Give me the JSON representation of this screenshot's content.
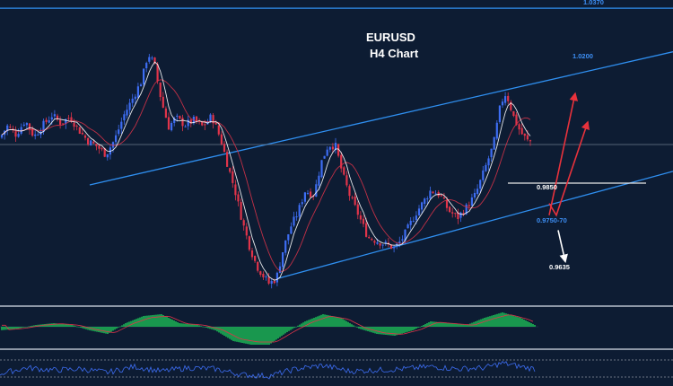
{
  "chart_data": {
    "type": "candlestick",
    "title": "EURUSD",
    "subtitle": "H4 Chart",
    "colors": {
      "background": "#0d1c33",
      "bull": "#3d6df2",
      "bear": "#e0344a",
      "trendline": "#2f8ff0",
      "support_line": "#e8e8e8",
      "arrow_up": "#e8323c",
      "arrow_down": "#ffffff",
      "macd_pos": "#1fcc5a",
      "ma_fast": "#ffffff",
      "ma_slow": "#e0344a",
      "rsi": "#3d6df2"
    },
    "price_range": [
      0.9565,
      1.0395
    ],
    "close_path": [
      [
        0,
        1.0009
      ],
      [
        8,
        1.0042
      ],
      [
        18,
        1.0018
      ],
      [
        28,
        1.0058
      ],
      [
        38,
        1.0012
      ],
      [
        48,
        1.0045
      ],
      [
        58,
        1.0072
      ],
      [
        68,
        1.005
      ],
      [
        78,
        1.0068
      ],
      [
        88,
        1.003
      ],
      [
        98,
        1.0
      ],
      [
        108,
        0.9985
      ],
      [
        118,
        0.9962
      ],
      [
        128,
        1.0005
      ],
      [
        138,
        1.0072
      ],
      [
        148,
        1.012
      ],
      [
        158,
        1.017
      ],
      [
        165,
        1.0245
      ],
      [
        172,
        1.0215
      ],
      [
        180,
        1.011
      ],
      [
        188,
        1.004
      ],
      [
        196,
        1.0065
      ],
      [
        206,
        1.0045
      ],
      [
        216,
        1.0058
      ],
      [
        226,
        1.004
      ],
      [
        236,
        1.007
      ],
      [
        246,
        1.0005
      ],
      [
        254,
        0.993
      ],
      [
        262,
        0.986
      ],
      [
        270,
        0.9775
      ],
      [
        278,
        0.9705
      ],
      [
        286,
        0.965
      ],
      [
        294,
        0.962
      ],
      [
        300,
        0.96
      ],
      [
        308,
        0.9615
      ],
      [
        316,
        0.97
      ],
      [
        324,
        0.976
      ],
      [
        332,
        0.98
      ],
      [
        340,
        0.986
      ],
      [
        350,
        0.985
      ],
      [
        358,
        0.994
      ],
      [
        366,
        0.999
      ],
      [
        374,
        0.9985
      ],
      [
        382,
        0.9905
      ],
      [
        390,
        0.9845
      ],
      [
        400,
        0.979
      ],
      [
        410,
        0.973
      ],
      [
        420,
        0.972
      ],
      [
        430,
        0.971
      ],
      [
        440,
        0.97
      ],
      [
        448,
        0.9725
      ],
      [
        456,
        0.9762
      ],
      [
        464,
        0.98
      ],
      [
        472,
        0.983
      ],
      [
        480,
        0.9862
      ],
      [
        490,
        0.985
      ],
      [
        500,
        0.9805
      ],
      [
        510,
        0.9785
      ],
      [
        520,
        0.9815
      ],
      [
        530,
        0.985
      ],
      [
        540,
        0.992
      ],
      [
        550,
        0.999
      ],
      [
        558,
        1.0105
      ],
      [
        564,
        1.0135
      ],
      [
        572,
        1.007
      ],
      [
        580,
        1.0025
      ],
      [
        588,
        1.0
      ],
      [
        594,
        0.9998
      ]
    ],
    "trendlines": [
      {
        "name": "upper_channel",
        "from": [
          100,
          0.9877
        ],
        "to": [
          750,
          1.025
        ],
        "color": "#2f8ff0"
      },
      {
        "name": "lower_channel",
        "from": [
          310,
          0.9615
        ],
        "to": [
          750,
          0.9915
        ],
        "color": "#2f8ff0"
      },
      {
        "name": "upper_band",
        "from": [
          0,
          1.0372
        ],
        "to": [
          750,
          1.0372
        ],
        "color": "#2f8ff0"
      },
      {
        "name": "pivot",
        "from": [
          0,
          0.999
        ],
        "to": [
          750,
          0.999
        ],
        "color": "#6a7a8c"
      },
      {
        "name": "support",
        "from": [
          566,
          0.9882
        ],
        "to": [
          720,
          0.9882
        ],
        "color": "#e8e8e8"
      }
    ],
    "levels": [
      {
        "label": "1.0370",
        "x": 650,
        "y": 1.0382,
        "color": "#3d8ff5"
      },
      {
        "label": "1.0200",
        "x": 638,
        "y": 1.0231,
        "color": "#3d8ff5"
      },
      {
        "label": "0.9850",
        "x": 598,
        "y": 0.9864,
        "color": "#ffffff"
      },
      {
        "label": "0.9750-70",
        "x": 598,
        "y": 0.9771,
        "color": "#3d8ff5"
      },
      {
        "label": "0.9635",
        "x": 612,
        "y": 0.964,
        "color": "#ffffff"
      }
    ],
    "arrows": [
      {
        "from": [
          612,
          0.9792
        ],
        "to": [
          641,
          1.0133
        ],
        "color": "#e8323c"
      },
      {
        "from": [
          620,
          0.9792
        ],
        "to": [
          655,
          1.0053
        ],
        "color": "#e8323c"
      },
      {
        "from": [
          618,
          0.9774
        ],
        "to": [
          629,
          0.9701
        ],
        "color": "#ffffff"
      },
      {
        "from": [
          622,
          0.975
        ],
        "to": [
          630,
          0.9662
        ],
        "color": "#ffffff"
      }
    ],
    "macd_histogram": [
      [
        0,
        -0.2
      ],
      [
        20,
        -0.1
      ],
      [
        40,
        0.1
      ],
      [
        60,
        0.2
      ],
      [
        80,
        0.1
      ],
      [
        100,
        -0.2
      ],
      [
        120,
        -0.4
      ],
      [
        140,
        0.2
      ],
      [
        160,
        0.6
      ],
      [
        180,
        0.7
      ],
      [
        200,
        0.2
      ],
      [
        220,
        0.1
      ],
      [
        240,
        -0.2
      ],
      [
        260,
        -0.8
      ],
      [
        280,
        -1.0
      ],
      [
        300,
        -1.0
      ],
      [
        320,
        -0.3
      ],
      [
        340,
        0.3
      ],
      [
        360,
        0.7
      ],
      [
        380,
        0.5
      ],
      [
        400,
        -0.1
      ],
      [
        420,
        -0.4
      ],
      [
        440,
        -0.5
      ],
      [
        460,
        -0.2
      ],
      [
        480,
        0.3
      ],
      [
        500,
        0.2
      ],
      [
        520,
        0.1
      ],
      [
        540,
        0.5
      ],
      [
        560,
        0.8
      ],
      [
        580,
        0.5
      ],
      [
        596,
        0.1
      ]
    ],
    "rsi_path": [
      [
        0,
        0.3
      ],
      [
        30,
        0.55
      ],
      [
        60,
        0.45
      ],
      [
        90,
        0.5
      ],
      [
        120,
        0.35
      ],
      [
        150,
        0.6
      ],
      [
        180,
        0.4
      ],
      [
        210,
        0.55
      ],
      [
        240,
        0.5
      ],
      [
        270,
        0.25
      ],
      [
        300,
        0.2
      ],
      [
        330,
        0.5
      ],
      [
        360,
        0.65
      ],
      [
        390,
        0.4
      ],
      [
        420,
        0.45
      ],
      [
        450,
        0.5
      ],
      [
        480,
        0.6
      ],
      [
        510,
        0.5
      ],
      [
        540,
        0.55
      ],
      [
        560,
        0.75
      ],
      [
        580,
        0.6
      ],
      [
        596,
        0.5
      ]
    ]
  }
}
